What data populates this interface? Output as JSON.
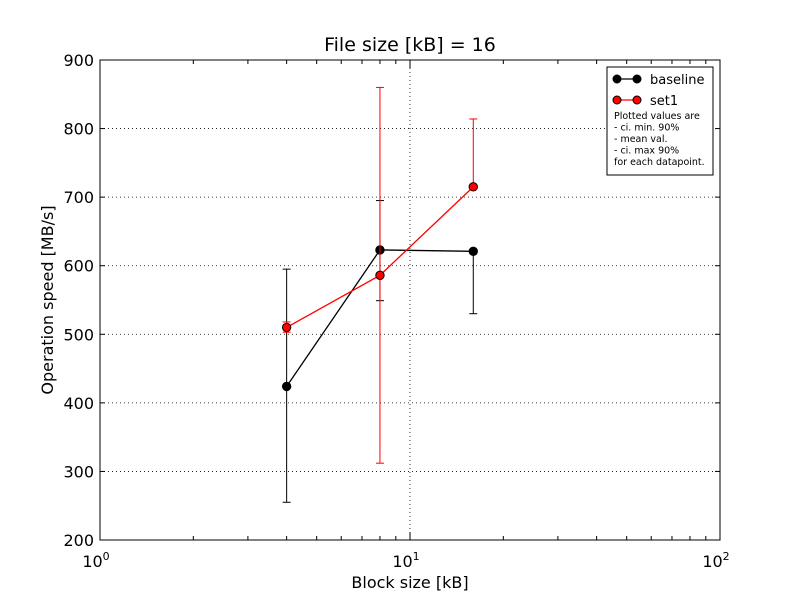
{
  "chart_data": {
    "type": "line",
    "title": "File size [kB] = 16",
    "xlabel": "Block size [kB]",
    "ylabel": "Operation speed [MB/s]",
    "xscale": "log",
    "xlim": [
      1,
      100
    ],
    "ylim": [
      200,
      900
    ],
    "x_ticks": [
      {
        "value": 1,
        "base": "10",
        "exp": "0"
      },
      {
        "value": 10,
        "base": "10",
        "exp": "1"
      },
      {
        "value": 100,
        "base": "10",
        "exp": "2"
      }
    ],
    "y_ticks": [
      "200",
      "300",
      "400",
      "500",
      "600",
      "700",
      "800",
      "900"
    ],
    "grid": true,
    "legend_position": "top-right",
    "series": [
      {
        "name": "baseline",
        "color": "#000000",
        "x": [
          4,
          8,
          16
        ],
        "y": [
          424,
          623,
          621
        ],
        "ci_min": [
          255,
          549,
          530
        ],
        "ci_max": [
          595,
          695,
          622
        ]
      },
      {
        "name": "set1",
        "color": "#ff0000",
        "x": [
          4,
          8,
          16
        ],
        "y": [
          510,
          586,
          715
        ],
        "ci_min": [
          503,
          312,
          715
        ],
        "ci_max": [
          518,
          860,
          814
        ]
      }
    ],
    "annotation": [
      "Plotted values are",
      "  - ci. min. 90%",
      "  - mean val.",
      "  - ci. max 90%",
      "for each datapoint."
    ]
  }
}
